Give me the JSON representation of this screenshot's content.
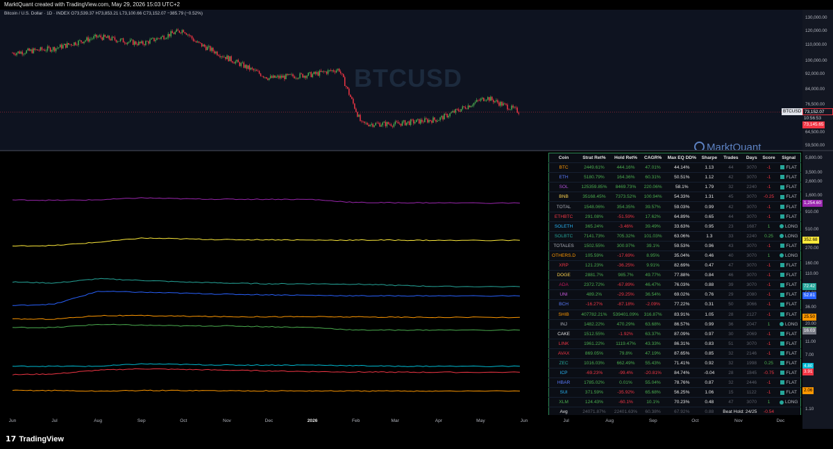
{
  "top_caption": "MarktQuant created with TradingView.com, May 29, 2026 15:03 UTC+2",
  "header": {
    "symbol": "Bitcoin / U.S. Dollar · 1D · INDEX",
    "open": "O73,539.37",
    "high": "H73,853.21",
    "low": "L73,100.66",
    "close": "C73,152.07",
    "change": "−385.79 (−0.52%)"
  },
  "watermark": "BTCUSD",
  "brand": "MarktQuant",
  "footer_logo": "TradingView",
  "colors": {
    "up": "#4caf50",
    "down": "#f23645",
    "table_border": "#2e8b57"
  },
  "price_axis": {
    "ticks": [
      "130,000.00",
      "120,000.00",
      "110,000.00",
      "100,000.00",
      "92,000.00",
      "84,000.00",
      "76,500.00",
      "64,500.00",
      "59,500.00"
    ],
    "symbol_badge": "BTCUSD",
    "last_price": "73,152.07",
    "countdown": "10:56:53",
    "prev_close": "73,145.65"
  },
  "perf_axis": {
    "ticks": [
      "5,800.00",
      "3,500.00",
      "2,600.00",
      "1,600.00",
      "910.00",
      "510.00",
      "270.00",
      "160.00",
      "110.00",
      "58.00",
      "36.00",
      "20.00",
      "11.00",
      "7.00",
      "4.00",
      "2.00",
      "1.10"
    ],
    "badges": [
      {
        "label": "1,254.60",
        "color": "#9c27b0",
        "text": "#ffffff"
      },
      {
        "label": "352.68",
        "color": "#ffeb3b",
        "text": "#000000"
      },
      {
        "label": "72.42",
        "color": "#26a69a",
        "text": "#ffffff"
      },
      {
        "label": "52.81",
        "color": "#2962ff",
        "text": "#ffffff"
      },
      {
        "label": "25.50",
        "color": "#ff9800",
        "text": "#000000"
      },
      {
        "label": "16.48",
        "color": "#4caf50",
        "text": "#ffffff"
      },
      {
        "label": "16.03",
        "color": "#787b86",
        "text": "#ffffff"
      },
      {
        "label": "4.80",
        "color": "#00bcd4",
        "text": "#ffffff"
      },
      {
        "label": "3.91",
        "color": "#f23645",
        "text": "#ffffff"
      },
      {
        "label": "2.06",
        "color": "#ff9800",
        "text": "#000000"
      }
    ]
  },
  "x_axis": {
    "labels": [
      "Jun",
      "Jul",
      "Aug",
      "Sep",
      "Oct",
      "Nov",
      "Dec",
      "2026",
      "Feb",
      "Mar",
      "Apr",
      "May",
      "Jun",
      "Jul",
      "Aug",
      "Sep",
      "Oct",
      "Nov",
      "Dec"
    ]
  },
  "table": {
    "columns": [
      "Coin",
      "Strat Ret%",
      "Hold Ret%",
      "CAGR%",
      "Max EQ DD%",
      "Sharpe",
      "Trades",
      "Days",
      "Score",
      "Signal"
    ],
    "rows": [
      {
        "coin": "BTC",
        "color": "#ff9800",
        "strat": "2449.61%",
        "hold": "444.16%",
        "cagr": "47.01%",
        "dd": "44.14%",
        "sharpe": "1.13",
        "trades": "44",
        "days": "3070",
        "score": "-1",
        "signal": "FLAT"
      },
      {
        "coin": "ETH",
        "color": "#5b7cff",
        "strat": "5180.79%",
        "hold": "164.36%",
        "cagr": "60.31%",
        "dd": "50.51%",
        "sharpe": "1.12",
        "trades": "42",
        "days": "3070",
        "score": "-1",
        "signal": "FLAT"
      },
      {
        "coin": "SOL",
        "color": "#b04fd6",
        "strat": "125359.85%",
        "hold": "8469.73%",
        "cagr": "220.06%",
        "dd": "58.1%",
        "sharpe": "1.79",
        "trades": "32",
        "days": "2240",
        "score": "-1",
        "signal": "FLAT"
      },
      {
        "coin": "BNB",
        "color": "#ffd54f",
        "strat": "35168.45%",
        "hold": "7373.52%",
        "cagr": "100.94%",
        "dd": "54.33%",
        "sharpe": "1.31",
        "trades": "45",
        "days": "3070",
        "score": "-0.25",
        "signal": "FLAT"
      },
      {
        "coin": "TOTAL",
        "color": "#b2b5be",
        "strat": "1548.06%",
        "hold": "354.35%",
        "cagr": "39.57%",
        "dd": "59.03%",
        "sharpe": "0.99",
        "trades": "42",
        "days": "3070",
        "score": "-1",
        "signal": "FLAT"
      },
      {
        "coin": "ETHBTC",
        "color": "#f23645",
        "strat": "291.08%",
        "hold": "-51.59%",
        "cagr": "17.62%",
        "dd": "64.89%",
        "sharpe": "0.65",
        "trades": "44",
        "days": "3070",
        "score": "-1",
        "signal": "FLAT"
      },
      {
        "coin": "SOLETH",
        "color": "#29b6f6",
        "strat": "365.24%",
        "hold": "-3.46%",
        "cagr": "39.49%",
        "dd": "33.63%",
        "sharpe": "0.95",
        "trades": "23",
        "days": "1687",
        "score": "1",
        "signal": "LONG"
      },
      {
        "coin": "SOLBTC",
        "color": "#26a69a",
        "strat": "7141.73%",
        "hold": "705.32%",
        "cagr": "101.03%",
        "dd": "63.06%",
        "sharpe": "1.3",
        "trades": "33",
        "days": "2240",
        "score": "0.25",
        "signal": "LONG"
      },
      {
        "coin": "TOTALES",
        "color": "#b2b5be",
        "strat": "1502.55%",
        "hold": "300.97%",
        "cagr": "39.1%",
        "dd": "59.53%",
        "sharpe": "0.96",
        "trades": "43",
        "days": "3070",
        "score": "-1",
        "signal": "FLAT"
      },
      {
        "coin": "OTHERS.D",
        "color": "#ff9800",
        "strat": "105.59%",
        "hold": "-17.69%",
        "cagr": "8.95%",
        "dd": "35.04%",
        "sharpe": "0.46",
        "trades": "40",
        "days": "3070",
        "score": "1",
        "signal": "LONG"
      },
      {
        "coin": "XRP",
        "color": "#f23645",
        "strat": "121.23%",
        "hold": "-36.25%",
        "cagr": "9.91%",
        "dd": "82.69%",
        "sharpe": "0.47",
        "trades": "47",
        "days": "3070",
        "score": "-1",
        "signal": "FLAT"
      },
      {
        "coin": "DOGE",
        "color": "#ffd54f",
        "strat": "2881.7%",
        "hold": "985.7%",
        "cagr": "49.77%",
        "dd": "77.88%",
        "sharpe": "0.84",
        "trades": "46",
        "days": "3070",
        "score": "-1",
        "signal": "FLAT"
      },
      {
        "coin": "ADA",
        "color": "#c2185b",
        "strat": "2372.72%",
        "hold": "-67.89%",
        "cagr": "46.47%",
        "dd": "76.03%",
        "sharpe": "0.88",
        "trades": "39",
        "days": "3070",
        "score": "-1",
        "signal": "FLAT"
      },
      {
        "coin": "UNI",
        "color": "#d05ce3",
        "strat": "489.2%",
        "hold": "-29.25%",
        "cagr": "36.54%",
        "dd": "69.02%",
        "sharpe": "0.76",
        "trades": "29",
        "days": "2080",
        "score": "-1",
        "signal": "FLAT"
      },
      {
        "coin": "BCH",
        "color": "#5b7cff",
        "strat": "-16.27%",
        "hold": "-87.18%",
        "cagr": "-2.09%",
        "dd": "77.22%",
        "sharpe": "0.31",
        "trades": "50",
        "days": "3066",
        "score": "-1",
        "signal": "FLAT"
      },
      {
        "coin": "SHIB",
        "color": "#ff9800",
        "strat": "407782.21%",
        "hold": "539401.09%",
        "cagr": "316.87%",
        "dd": "83.91%",
        "sharpe": "1.05",
        "trades": "28",
        "days": "2127",
        "score": "-1",
        "signal": "FLAT"
      },
      {
        "coin": "INJ",
        "color": "#b2b5be",
        "strat": "1482.22%",
        "hold": "470.29%",
        "cagr": "63.68%",
        "dd": "86.57%",
        "sharpe": "0.99",
        "trades": "36",
        "days": "2047",
        "score": "1",
        "signal": "LONG"
      },
      {
        "coin": "CAKE",
        "color": "#e6e6e6",
        "strat": "1512.55%",
        "hold": "-1.92%",
        "cagr": "63.37%",
        "dd": "87.09%",
        "sharpe": "0.97",
        "trades": "30",
        "days": "2069",
        "score": "-1",
        "signal": "FLAT"
      },
      {
        "coin": "LINK",
        "color": "#f23645",
        "strat": "1961.22%",
        "hold": "1119.47%",
        "cagr": "43.33%",
        "dd": "86.31%",
        "sharpe": "0.83",
        "trades": "51",
        "days": "3070",
        "score": "-1",
        "signal": "FLAT"
      },
      {
        "coin": "AVAX",
        "color": "#f23645",
        "strat": "869.05%",
        "hold": "79.8%",
        "cagr": "47.19%",
        "dd": "87.65%",
        "sharpe": "0.85",
        "trades": "32",
        "days": "2146",
        "score": "-1",
        "signal": "FLAT"
      },
      {
        "coin": "ZEC",
        "color": "#26a69a",
        "strat": "1016.03%",
        "hold": "662.49%",
        "cagr": "55.43%",
        "dd": "71.41%",
        "sharpe": "0.92",
        "trades": "32",
        "days": "1998",
        "score": "0.25",
        "signal": "FLAT"
      },
      {
        "coin": "ICP",
        "color": "#29b6f6",
        "strat": "-69.23%",
        "hold": "-99.4%",
        "cagr": "-20.81%",
        "dd": "84.74%",
        "sharpe": "-0.04",
        "trades": "28",
        "days": "1845",
        "score": "-0.75",
        "signal": "FLAT"
      },
      {
        "coin": "HBAR",
        "color": "#5b7cff",
        "strat": "1785.02%",
        "hold": "0.01%",
        "cagr": "55.04%",
        "dd": "78.76%",
        "sharpe": "0.87",
        "trades": "32",
        "days": "2446",
        "score": "-1",
        "signal": "FLAT"
      },
      {
        "coin": "SUI",
        "color": "#29b6f6",
        "strat": "371.59%",
        "hold": "-35.92%",
        "cagr": "65.68%",
        "dd": "56.25%",
        "sharpe": "1.06",
        "trades": "15",
        "days": "1122",
        "score": "-1",
        "signal": "FLAT"
      },
      {
        "coin": "XLM",
        "color": "#4caf50",
        "strat": "124.43%",
        "hold": "-60.1%",
        "cagr": "10.1%",
        "dd": "70.23%",
        "sharpe": "0.48",
        "trades": "47",
        "days": "3070",
        "score": "1",
        "signal": "LONG"
      }
    ],
    "avg": {
      "label": "Avg",
      "strat": "24071.87%",
      "hold": "22401.63%",
      "cagr": "60.38%",
      "dd": "67.92%",
      "sharpe": "0.88",
      "beat_hold": "Beat Hold: 24/25",
      "score": "-0.54"
    }
  },
  "chart_data": [
    {
      "type": "candlestick",
      "title": "Bitcoin / U.S. Dollar · 1D · INDEX",
      "y_scale": "log",
      "ylim": [
        59500,
        130000
      ],
      "x": [
        "2025-06-01",
        "2025-07-01",
        "2025-08-01",
        "2025-09-01",
        "2025-10-01",
        "2025-10-10",
        "2025-11-01",
        "2025-12-01",
        "2026-01-01",
        "2026-01-20",
        "2026-02-05",
        "2026-03-01",
        "2026-04-01",
        "2026-05-05",
        "2026-05-29"
      ],
      "close": [
        105000,
        108000,
        116000,
        111000,
        121000,
        112000,
        102000,
        90000,
        92000,
        95000,
        68000,
        68000,
        70000,
        80000,
        73152.07
      ]
    },
    {
      "type": "line",
      "y_scale": "log",
      "ylim": [
        1.1,
        5800
      ],
      "x": [
        "2025-06",
        "2025-07",
        "2025-08",
        "2025-09",
        "2025-10",
        "2025-11",
        "2025-12",
        "2026-01",
        "2026-02",
        "2026-03",
        "2026-04",
        "2026-05"
      ],
      "series": [
        {
          "name": "SOL",
          "color": "#9c27b0",
          "values": [
            1400,
            1380,
            1400,
            1500,
            1450,
            1430,
            1430,
            1420,
            1280,
            1270,
            1265,
            1254.6
          ]
        },
        {
          "name": "BNB",
          "color": "#ffeb3b",
          "values": [
            290,
            295,
            330,
            380,
            370,
            360,
            360,
            355,
            355,
            355,
            352,
            352.68
          ]
        },
        {
          "name": "SOLBTC",
          "color": "#26a69a",
          "values": [
            85,
            82,
            95,
            90,
            85,
            82,
            80,
            80,
            79,
            76,
            73,
            72.42
          ]
        },
        {
          "name": "ETH",
          "color": "#2962ff",
          "values": [
            38,
            40,
            62,
            60,
            58,
            56,
            55,
            54,
            53,
            53,
            53,
            52.81
          ]
        },
        {
          "name": "SHIB",
          "color": "#ff9800",
          "values": [
            24,
            24,
            27,
            27,
            26.5,
            26,
            26,
            26,
            25.8,
            25.6,
            25.5,
            25.5
          ]
        },
        {
          "name": "INJ",
          "color": "#4caf50",
          "values": [
            18,
            18,
            20,
            19.5,
            19,
            19,
            18.5,
            18,
            16.5,
            16.5,
            16.5,
            16.48
          ]
        },
        {
          "name": "ICP",
          "color": "#00bcd4",
          "values": [
            4.8,
            4.8,
            4.8,
            5.2,
            5.1,
            5.0,
            5.0,
            5.0,
            4.9,
            4.8,
            4.8,
            4.8
          ]
        },
        {
          "name": "ETHBTC",
          "color": "#f23645",
          "values": [
            3.6,
            3.7,
            4.2,
            4.4,
            4.3,
            4.2,
            4.1,
            4.0,
            3.95,
            3.92,
            3.91,
            3.91
          ]
        },
        {
          "name": "OTHERS.D",
          "color": "#ff9800",
          "values": [
            2.1,
            2.1,
            2.05,
            2.1,
            2.1,
            2.08,
            2.07,
            2.07,
            2.06,
            2.06,
            2.06,
            2.06
          ]
        }
      ]
    }
  ]
}
